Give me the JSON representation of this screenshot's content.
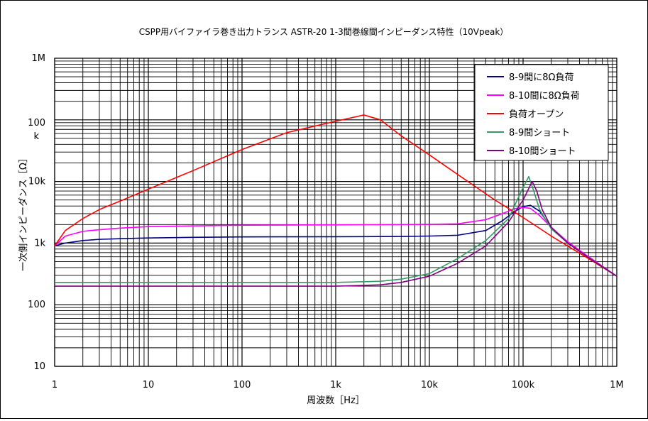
{
  "chart_data": {
    "type": "line",
    "title": "CSPP用バイファイラ巻き出力トランス ASTR-20 1-3間巻線間インピーダンス特性（10Vpeak）",
    "xlabel": "周波数［Hz］",
    "ylabel": "一次側インピーダンス［Ω］",
    "xscale": "log",
    "yscale": "log",
    "xlim": [
      1,
      1000000
    ],
    "ylim": [
      10,
      1000000
    ],
    "grid": true,
    "legend_position": "top-right",
    "x_ticks": [
      {
        "value": 1,
        "label": "1"
      },
      {
        "value": 10,
        "label": "10"
      },
      {
        "value": 100,
        "label": "100"
      },
      {
        "value": 1000,
        "label": "1k"
      },
      {
        "value": 10000,
        "label": "10k"
      },
      {
        "value": 100000,
        "label": "100k"
      },
      {
        "value": 1000000,
        "label": "1M"
      }
    ],
    "y_ticks": [
      {
        "value": 10,
        "label": "10"
      },
      {
        "value": 100,
        "label": "100"
      },
      {
        "value": 1000,
        "label": "1k"
      },
      {
        "value": 10000,
        "label": "10k"
      },
      {
        "value": 100000,
        "label": "100\nk"
      },
      {
        "value": 1000000,
        "label": "1M"
      }
    ],
    "series": [
      {
        "name": "8-9間に8Ω負荷",
        "color": "#000080",
        "points": [
          [
            1,
            900
          ],
          [
            1.3,
            1000
          ],
          [
            2,
            1100
          ],
          [
            3,
            1150
          ],
          [
            5,
            1180
          ],
          [
            10,
            1210
          ],
          [
            30,
            1240
          ],
          [
            100,
            1260
          ],
          [
            1000,
            1270
          ],
          [
            5000,
            1280
          ],
          [
            10000,
            1300
          ],
          [
            20000,
            1340
          ],
          [
            40000,
            1600
          ],
          [
            60000,
            2300
          ],
          [
            80000,
            3200
          ],
          [
            100000,
            3900
          ],
          [
            120000,
            4100
          ],
          [
            150000,
            3300
          ],
          [
            200000,
            1800
          ],
          [
            300000,
            1000
          ],
          [
            500000,
            600
          ],
          [
            1000000,
            290
          ]
        ]
      },
      {
        "name": "8-10間に8Ω負荷",
        "color": "#ff00ff",
        "points": [
          [
            1,
            900
          ],
          [
            1.3,
            1300
          ],
          [
            2,
            1550
          ],
          [
            3,
            1650
          ],
          [
            5,
            1750
          ],
          [
            10,
            1850
          ],
          [
            30,
            1900
          ],
          [
            100,
            1950
          ],
          [
            1000,
            1980
          ],
          [
            5000,
            2000
          ],
          [
            10000,
            2020
          ],
          [
            20000,
            2050
          ],
          [
            40000,
            2400
          ],
          [
            60000,
            3000
          ],
          [
            80000,
            3600
          ],
          [
            100000,
            3800
          ],
          [
            120000,
            3650
          ],
          [
            150000,
            2800
          ],
          [
            200000,
            1800
          ],
          [
            300000,
            1050
          ],
          [
            500000,
            600
          ],
          [
            1000000,
            290
          ]
        ]
      },
      {
        "name": "負荷オープン",
        "color": "#ff0000",
        "points": [
          [
            1,
            900
          ],
          [
            1.3,
            1600
          ],
          [
            2,
            2500
          ],
          [
            3,
            3500
          ],
          [
            5,
            4800
          ],
          [
            10,
            7500
          ],
          [
            30,
            15000
          ],
          [
            100,
            33000
          ],
          [
            300,
            62000
          ],
          [
            1000,
            95000
          ],
          [
            2000,
            120000
          ],
          [
            3000,
            100000
          ],
          [
            5000,
            55000
          ],
          [
            10000,
            27000
          ],
          [
            20000,
            13000
          ],
          [
            50000,
            5000
          ],
          [
            100000,
            2600
          ],
          [
            200000,
            1300
          ],
          [
            500000,
            560
          ],
          [
            1000000,
            290
          ]
        ]
      },
      {
        "name": "8-9間ショート",
        "color": "#339966",
        "points": [
          [
            1,
            230
          ],
          [
            10,
            230
          ],
          [
            100,
            230
          ],
          [
            1000,
            230
          ],
          [
            3000,
            240
          ],
          [
            5000,
            260
          ],
          [
            10000,
            320
          ],
          [
            20000,
            560
          ],
          [
            40000,
            1100
          ],
          [
            70000,
            2500
          ],
          [
            100000,
            8000
          ],
          [
            115000,
            12000
          ],
          [
            130000,
            7000
          ],
          [
            150000,
            3500
          ],
          [
            200000,
            1700
          ],
          [
            300000,
            1000
          ],
          [
            500000,
            580
          ],
          [
            1000000,
            290
          ]
        ]
      },
      {
        "name": "8-10間ショート",
        "color": "#800080",
        "points": [
          [
            1,
            200
          ],
          [
            10,
            200
          ],
          [
            100,
            200
          ],
          [
            1000,
            200
          ],
          [
            3000,
            210
          ],
          [
            5000,
            230
          ],
          [
            10000,
            290
          ],
          [
            20000,
            470
          ],
          [
            40000,
            900
          ],
          [
            70000,
            2200
          ],
          [
            100000,
            5000
          ],
          [
            125000,
            10000
          ],
          [
            140000,
            7000
          ],
          [
            160000,
            3500
          ],
          [
            200000,
            1800
          ],
          [
            300000,
            1000
          ],
          [
            500000,
            580
          ],
          [
            1000000,
            290
          ]
        ]
      }
    ]
  }
}
